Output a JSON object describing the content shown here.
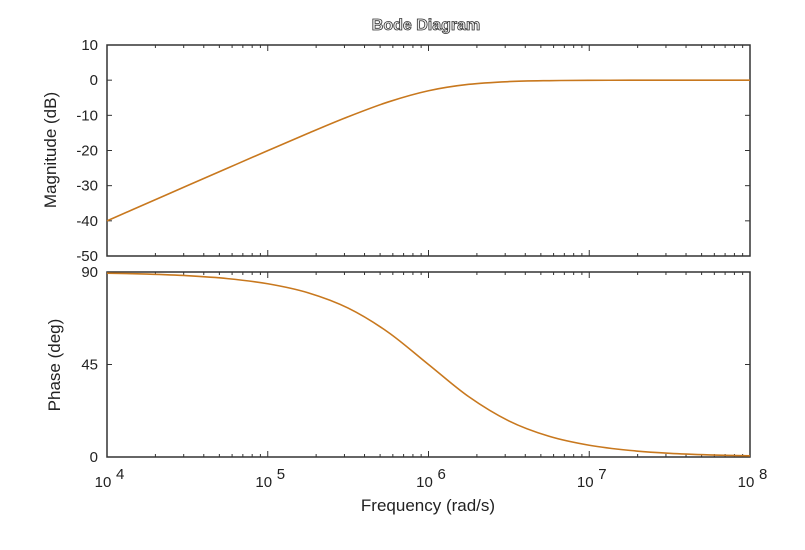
{
  "chart_data": [
    {
      "type": "line",
      "title": "Bode Diagram",
      "xlabel": "Frequency (rad/s)",
      "ylabel": "Magnitude (dB)",
      "x_scale": "log",
      "xlim": [
        10000,
        100000000
      ],
      "ylim": [
        -50,
        10
      ],
      "yticks": [
        "10",
        "0",
        "-10",
        "-20",
        "-30",
        "-40",
        "-50"
      ],
      "yticks_values": [
        10,
        0,
        -10,
        -20,
        -30,
        -40,
        -50
      ],
      "grid": false,
      "line_color": "#c8781e",
      "x": [
        10000.0,
        17780.0,
        31620.0,
        56230.0,
        100000.0,
        177800.0,
        316200.0,
        562300.0,
        1000000.0,
        1778000.0,
        3162000.0,
        5623000.0,
        10000000.0,
        17780000.0,
        31620000.0,
        56230000.0,
        100000000.0
      ],
      "y": [
        -40.0,
        -35.0,
        -30.0,
        -25.01,
        -20.04,
        -15.13,
        -10.41,
        -6.19,
        -3.01,
        -1.19,
        -0.41,
        -0.135,
        -0.043,
        -0.014,
        -0.004,
        -0.001,
        0.0
      ]
    },
    {
      "type": "line",
      "xlabel": "Frequency (rad/s)",
      "ylabel": "Phase (deg)",
      "x_scale": "log",
      "xlim": [
        10000,
        100000000
      ],
      "ylim": [
        0,
        90
      ],
      "xticks": [
        "4",
        "5",
        "6",
        "7",
        "8"
      ],
      "xticks_base": "10",
      "yticks": [
        "90",
        "45",
        "0"
      ],
      "yticks_values": [
        90,
        45,
        0
      ],
      "grid": false,
      "line_color": "#c8781e",
      "x": [
        10000.0,
        17780.0,
        31620.0,
        56230.0,
        100000.0,
        177800.0,
        316200.0,
        562300.0,
        1000000.0,
        1778000.0,
        3162000.0,
        5623000.0,
        10000000.0,
        17780000.0,
        31620000.0,
        56230000.0,
        100000000.0
      ],
      "y": [
        89.43,
        88.98,
        88.19,
        86.78,
        84.29,
        79.92,
        72.45,
        60.64,
        45.0,
        29.36,
        17.55,
        10.08,
        5.71,
        3.22,
        1.81,
        1.02,
        0.57
      ]
    }
  ]
}
